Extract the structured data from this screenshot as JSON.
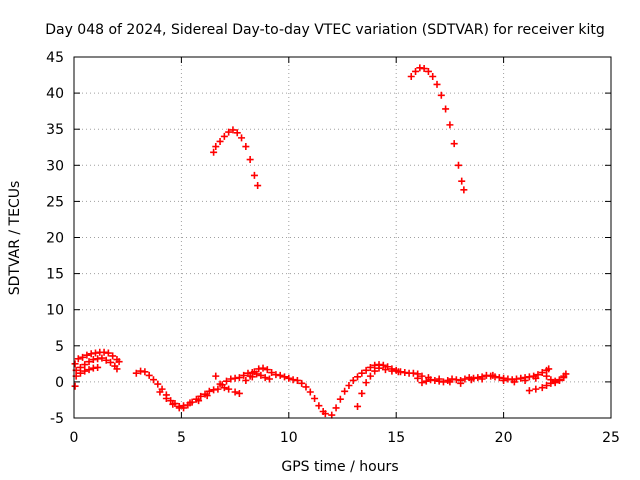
{
  "chart_data": {
    "type": "scatter",
    "title": "Day 048 of 2024, Sidereal Day-to-day VTEC variation (SDTVAR) for receiver kitg",
    "xlabel": "GPS time / hours",
    "ylabel": "SDTVAR / TECUs",
    "xlim": [
      0,
      25
    ],
    "ylim": [
      -5,
      45
    ],
    "xticks": [
      0,
      5,
      10,
      15,
      20,
      25
    ],
    "yticks": [
      -5,
      0,
      5,
      10,
      15,
      20,
      25,
      30,
      35,
      40,
      45
    ],
    "grid": true,
    "series": [
      {
        "name": "SDTVAR",
        "color": "#ff0000",
        "marker": "plus",
        "points": [
          [
            0.05,
            -0.6
          ],
          [
            0.05,
            2.5
          ],
          [
            0.2,
            3.2
          ],
          [
            0.4,
            3.4
          ],
          [
            0.6,
            3.7
          ],
          [
            0.8,
            3.9
          ],
          [
            1.0,
            4.0
          ],
          [
            1.2,
            4.1
          ],
          [
            1.4,
            4.1
          ],
          [
            1.6,
            4.0
          ],
          [
            1.8,
            3.6
          ],
          [
            2.0,
            3.1
          ],
          [
            2.1,
            2.8
          ],
          [
            0.1,
            1.6
          ],
          [
            0.3,
            2.0
          ],
          [
            0.5,
            2.4
          ],
          [
            0.7,
            2.8
          ],
          [
            0.9,
            3.1
          ],
          [
            1.1,
            3.2
          ],
          [
            1.3,
            3.3
          ],
          [
            1.5,
            3.0
          ],
          [
            1.7,
            2.7
          ],
          [
            1.9,
            2.2
          ],
          [
            2.0,
            1.8
          ],
          [
            0.1,
            0.8
          ],
          [
            0.3,
            1.2
          ],
          [
            0.5,
            1.5
          ],
          [
            0.7,
            1.7
          ],
          [
            0.9,
            1.9
          ],
          [
            1.1,
            2.0
          ],
          [
            2.9,
            1.2
          ],
          [
            3.1,
            1.5
          ],
          [
            3.3,
            1.4
          ],
          [
            3.5,
            0.9
          ],
          [
            3.7,
            0.3
          ],
          [
            3.9,
            -0.3
          ],
          [
            4.1,
            -1.0
          ],
          [
            4.3,
            -1.8
          ],
          [
            4.5,
            -2.6
          ],
          [
            4.7,
            -3.0
          ],
          [
            4.9,
            -3.4
          ],
          [
            5.1,
            -3.6
          ],
          [
            5.3,
            -3.2
          ],
          [
            5.5,
            -2.8
          ],
          [
            5.7,
            -2.4
          ],
          [
            5.9,
            -2.0
          ],
          [
            6.1,
            -1.7
          ],
          [
            6.3,
            -1.3
          ],
          [
            4.0,
            -1.4
          ],
          [
            4.3,
            -2.3
          ],
          [
            4.6,
            -3.1
          ],
          [
            4.9,
            -3.6
          ],
          [
            5.1,
            -3.3
          ],
          [
            5.4,
            -2.9
          ],
          [
            5.8,
            -2.6
          ],
          [
            6.2,
            -1.9
          ],
          [
            6.5,
            -1.1
          ],
          [
            6.6,
            0.8
          ],
          [
            6.8,
            -0.3
          ],
          [
            7.0,
            -0.8
          ],
          [
            7.2,
            -1.0
          ],
          [
            7.5,
            -1.4
          ],
          [
            7.7,
            -1.6
          ],
          [
            6.7,
            -1.0
          ],
          [
            6.9,
            -0.4
          ],
          [
            7.1,
            0.1
          ],
          [
            7.3,
            0.4
          ],
          [
            7.5,
            0.5
          ],
          [
            7.7,
            0.6
          ],
          [
            7.9,
            0.9
          ],
          [
            8.1,
            1.2
          ],
          [
            8.3,
            1.3
          ],
          [
            8.0,
            0.2
          ],
          [
            8.2,
            0.8
          ],
          [
            8.4,
            1.4
          ],
          [
            8.6,
            1.8
          ],
          [
            8.8,
            1.9
          ],
          [
            9.0,
            1.7
          ],
          [
            9.2,
            1.3
          ],
          [
            9.4,
            1.0
          ],
          [
            9.6,
            0.9
          ],
          [
            9.8,
            0.7
          ],
          [
            10.0,
            0.5
          ],
          [
            10.2,
            0.3
          ],
          [
            10.4,
            0.2
          ],
          [
            10.6,
            -0.2
          ],
          [
            10.8,
            -0.7
          ],
          [
            11.0,
            -1.4
          ],
          [
            11.2,
            -2.3
          ],
          [
            11.4,
            -3.3
          ],
          [
            11.6,
            -4.1
          ],
          [
            11.7,
            -4.4
          ],
          [
            8.3,
            0.7
          ],
          [
            8.5,
            1.1
          ],
          [
            8.7,
            0.9
          ],
          [
            8.9,
            0.6
          ],
          [
            9.1,
            0.4
          ],
          [
            12.0,
            -4.6
          ],
          [
            12.2,
            -3.6
          ],
          [
            12.4,
            -2.4
          ],
          [
            12.6,
            -1.3
          ],
          [
            12.8,
            -0.5
          ],
          [
            13.0,
            0.2
          ],
          [
            13.2,
            0.7
          ],
          [
            13.4,
            1.2
          ],
          [
            13.6,
            1.6
          ],
          [
            13.8,
            2.0
          ],
          [
            14.0,
            2.3
          ],
          [
            14.2,
            2.4
          ],
          [
            14.4,
            2.3
          ],
          [
            14.6,
            2.1
          ],
          [
            14.8,
            1.8
          ],
          [
            15.0,
            1.6
          ],
          [
            15.2,
            1.4
          ],
          [
            15.4,
            1.3
          ],
          [
            15.6,
            1.2
          ],
          [
            15.8,
            1.2
          ],
          [
            16.0,
            1.1
          ],
          [
            13.2,
            -3.4
          ],
          [
            13.4,
            -1.6
          ],
          [
            13.6,
            -0.1
          ],
          [
            13.8,
            0.8
          ],
          [
            14.0,
            1.5
          ],
          [
            14.2,
            1.9
          ],
          [
            14.5,
            1.7
          ],
          [
            14.8,
            1.5
          ],
          [
            15.1,
            1.4
          ],
          [
            16.0,
            0.5
          ],
          [
            16.2,
            -0.1
          ],
          [
            16.4,
            0.1
          ],
          [
            16.6,
            0.3
          ],
          [
            16.8,
            0.2
          ],
          [
            17.0,
            0.1
          ],
          [
            17.2,
            0.0
          ],
          [
            17.4,
            0.2
          ],
          [
            17.6,
            0.4
          ],
          [
            17.8,
            0.3
          ],
          [
            18.0,
            0.2
          ],
          [
            18.2,
            0.4
          ],
          [
            18.4,
            0.6
          ],
          [
            18.6,
            0.5
          ],
          [
            18.8,
            0.6
          ],
          [
            19.0,
            0.7
          ],
          [
            19.2,
            0.9
          ],
          [
            19.4,
            0.8
          ],
          [
            19.6,
            0.7
          ],
          [
            19.8,
            0.6
          ],
          [
            20.0,
            0.5
          ],
          [
            20.2,
            0.4
          ],
          [
            20.4,
            0.3
          ],
          [
            20.6,
            0.4
          ],
          [
            20.8,
            0.5
          ],
          [
            21.0,
            0.6
          ],
          [
            21.2,
            0.7
          ],
          [
            21.4,
            0.8
          ],
          [
            21.6,
            1.0
          ],
          [
            21.8,
            1.3
          ],
          [
            22.0,
            1.6
          ],
          [
            22.1,
            1.8
          ],
          [
            16.2,
            0.8
          ],
          [
            16.5,
            0.6
          ],
          [
            17.0,
            0.4
          ],
          [
            17.5,
            0.0
          ],
          [
            18.0,
            -0.2
          ],
          [
            18.5,
            0.3
          ],
          [
            19.0,
            0.4
          ],
          [
            19.5,
            0.9
          ],
          [
            20.0,
            0.2
          ],
          [
            20.5,
            0.0
          ],
          [
            21.0,
            0.2
          ],
          [
            21.5,
            0.5
          ],
          [
            21.2,
            -1.2
          ],
          [
            21.5,
            -1.0
          ],
          [
            21.8,
            -0.8
          ],
          [
            22.0,
            -0.5
          ],
          [
            22.2,
            -0.2
          ],
          [
            22.4,
            0.1
          ],
          [
            22.6,
            0.3
          ],
          [
            22.8,
            0.6
          ],
          [
            22.0,
            0.8
          ],
          [
            22.2,
            0.3
          ],
          [
            22.4,
            -0.1
          ],
          [
            22.6,
            0.2
          ],
          [
            22.8,
            0.8
          ],
          [
            22.9,
            1.1
          ],
          [
            6.5,
            31.8
          ],
          [
            6.6,
            32.6
          ],
          [
            6.8,
            33.3
          ],
          [
            7.0,
            34.0
          ],
          [
            7.2,
            34.6
          ],
          [
            7.4,
            34.9
          ],
          [
            7.6,
            34.5
          ],
          [
            7.8,
            33.8
          ],
          [
            8.0,
            32.6
          ],
          [
            8.2,
            30.8
          ],
          [
            8.4,
            28.6
          ],
          [
            8.55,
            27.2
          ],
          [
            15.7,
            42.3
          ],
          [
            15.9,
            43.0
          ],
          [
            16.1,
            43.5
          ],
          [
            16.3,
            43.4
          ],
          [
            16.5,
            43.0
          ],
          [
            16.7,
            42.3
          ],
          [
            16.9,
            41.2
          ],
          [
            17.1,
            39.7
          ],
          [
            17.3,
            37.8
          ],
          [
            17.5,
            35.6
          ],
          [
            17.7,
            33.0
          ],
          [
            17.9,
            30.0
          ],
          [
            18.05,
            27.8
          ],
          [
            18.15,
            26.6
          ]
        ]
      }
    ]
  }
}
